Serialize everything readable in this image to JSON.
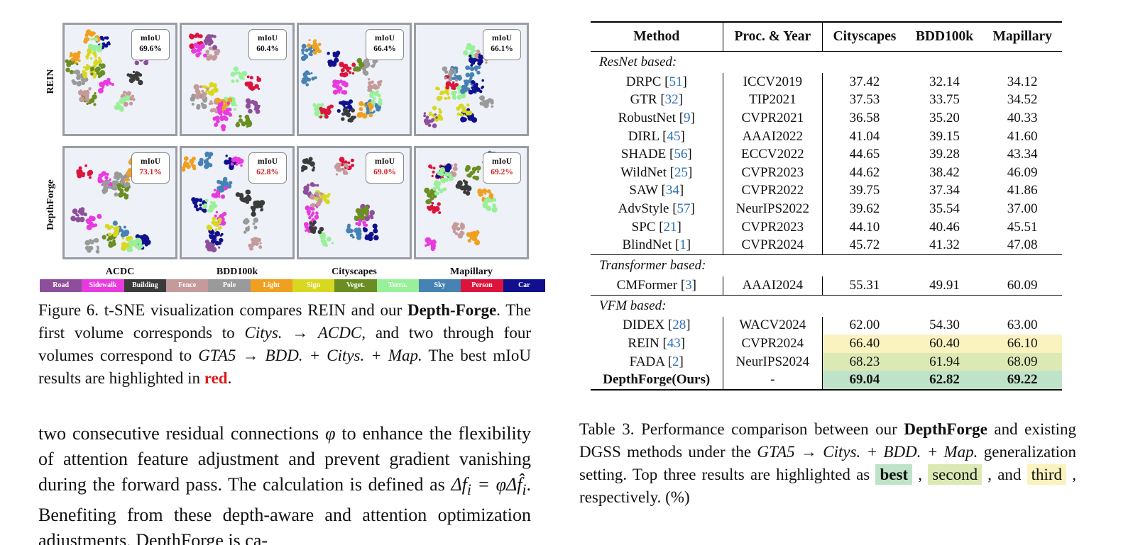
{
  "figure": {
    "row_labels": [
      "REIN",
      "DepthForge"
    ],
    "col_labels": [
      "ACDC",
      "BDD100k",
      "Cityscapes",
      "Mapillary"
    ],
    "miou_label": "mIoU",
    "rows": [
      {
        "values": [
          "69.6%",
          "60.4%",
          "66.4%",
          "66.1%"
        ],
        "highlight": false
      },
      {
        "values": [
          "73.1%",
          "62.8%",
          "69.0%",
          "69.2%"
        ],
        "highlight": true
      }
    ],
    "legend": [
      {
        "label": "Road",
        "color": "#8e4f9a"
      },
      {
        "label": "Sidewalk",
        "color": "#e83adf"
      },
      {
        "label": "Building",
        "color": "#3b3b3b"
      },
      {
        "label": "Fence",
        "color": "#c49a9a"
      },
      {
        "label": "Pole",
        "color": "#9a9a9a"
      },
      {
        "label": "Light",
        "color": "#f0a020"
      },
      {
        "label": "Sign",
        "color": "#d8d820"
      },
      {
        "label": "Veget.",
        "color": "#6b8e23"
      },
      {
        "label": "Terra.",
        "color": "#98f098"
      },
      {
        "label": "Sky",
        "color": "#4682b4"
      },
      {
        "label": "Person",
        "color": "#dc143c"
      },
      {
        "label": "Car",
        "color": "#10108e"
      }
    ]
  },
  "fig6_caption": {
    "prefix": "Figure 6.  t-SNE visualization compares REIN and our ",
    "bold1": "Depth-Forge",
    "mid1": ". The first volume corresponds to ",
    "it1": "Citys. → ACDC",
    "mid2": ", and two through four volumes correspond to ",
    "it2": "GTA5 → BDD. + Citys. + Map.",
    "mid3": "  The best mIoU results are highlighted in ",
    "red": "red",
    "end": "."
  },
  "body_text": {
    "l1a": "two consecutive residual connections ",
    "phi": "φ",
    "l1b": " to enhance the flexibility of attention feature adjustment and prevent gradient vanishing during the forward pass.  The calculation is defined as ",
    "eq": "Δf",
    "eq_i": "i",
    "eq_rest": " = φΔf̂",
    "l2": ". Benefiting from these depth-aware and attention optimization adjustments, DepthForge is ca-"
  },
  "table": {
    "headers": [
      "Method",
      "Proc. & Year",
      "Cityscapes",
      "BDD100k",
      "Mapillary"
    ],
    "groups": [
      {
        "name": "ResNet based:",
        "rows": [
          {
            "method": "DRPC",
            "ref": "51",
            "proc": "ICCV2019",
            "vals": [
              "37.42",
              "32.14",
              "34.12"
            ]
          },
          {
            "method": "GTR",
            "ref": "32",
            "proc": "TIP2021",
            "vals": [
              "37.53",
              "33.75",
              "34.52"
            ]
          },
          {
            "method": "RobustNet",
            "ref": "9",
            "proc": "CVPR2021",
            "vals": [
              "36.58",
              "35.20",
              "40.33"
            ]
          },
          {
            "method": "DIRL",
            "ref": "45",
            "proc": "AAAI2022",
            "vals": [
              "41.04",
              "39.15",
              "41.60"
            ]
          },
          {
            "method": "SHADE",
            "ref": "56",
            "proc": "ECCV2022",
            "vals": [
              "44.65",
              "39.28",
              "43.34"
            ]
          },
          {
            "method": "WildNet",
            "ref": "25",
            "proc": "CVPR2023",
            "vals": [
              "44.62",
              "38.42",
              "46.09"
            ]
          },
          {
            "method": "SAW",
            "ref": "34",
            "proc": "CVPR2022",
            "vals": [
              "39.75",
              "37.34",
              "41.86"
            ]
          },
          {
            "method": "AdvStyle",
            "ref": "57",
            "proc": "NeurIPS2022",
            "vals": [
              "39.62",
              "35.54",
              "37.00"
            ]
          },
          {
            "method": "SPC",
            "ref": "21",
            "proc": "CVPR2023",
            "vals": [
              "44.10",
              "40.46",
              "45.51"
            ]
          },
          {
            "method": "BlindNet",
            "ref": "1",
            "proc": "CVPR2024",
            "vals": [
              "45.72",
              "41.32",
              "47.08"
            ]
          }
        ]
      },
      {
        "name": "Transformer based:",
        "rows": [
          {
            "method": "CMFormer",
            "ref": "3",
            "proc": "AAAI2024",
            "vals": [
              "55.31",
              "49.91",
              "60.09"
            ]
          }
        ]
      },
      {
        "name": "VFM based:",
        "rows": [
          {
            "method": "DIDEX",
            "ref": "28",
            "proc": "WACV2024",
            "vals": [
              "62.00",
              "54.30",
              "63.00"
            ]
          },
          {
            "method": "REIN",
            "ref": "43",
            "proc": "CVPR2024",
            "vals": [
              "66.40",
              "60.40",
              "66.10"
            ],
            "rank": "third"
          },
          {
            "method": "FADA",
            "ref": "2",
            "proc": "NeurIPS2024",
            "vals": [
              "68.23",
              "61.94",
              "68.09"
            ],
            "rank": "second"
          },
          {
            "method": "DepthForge(Ours)",
            "ref": "",
            "proc": "-",
            "vals": [
              "69.04",
              "62.82",
              "69.22"
            ],
            "rank": "best"
          }
        ]
      }
    ]
  },
  "tab3_caption": {
    "prefix": "Table 3.  Performance comparison between our ",
    "bold": "DepthForge",
    "mid1": " and existing DGSS methods under the ",
    "it": "GTA5 → Citys. + BDD. + Map.",
    "mid2": " generalization setting.  Top three results are highlighted as ",
    "best": "best",
    "sep1": " ,",
    "second": "second",
    "sep2": " , and ",
    "third": "third",
    "end": " , respectively. (%)"
  }
}
